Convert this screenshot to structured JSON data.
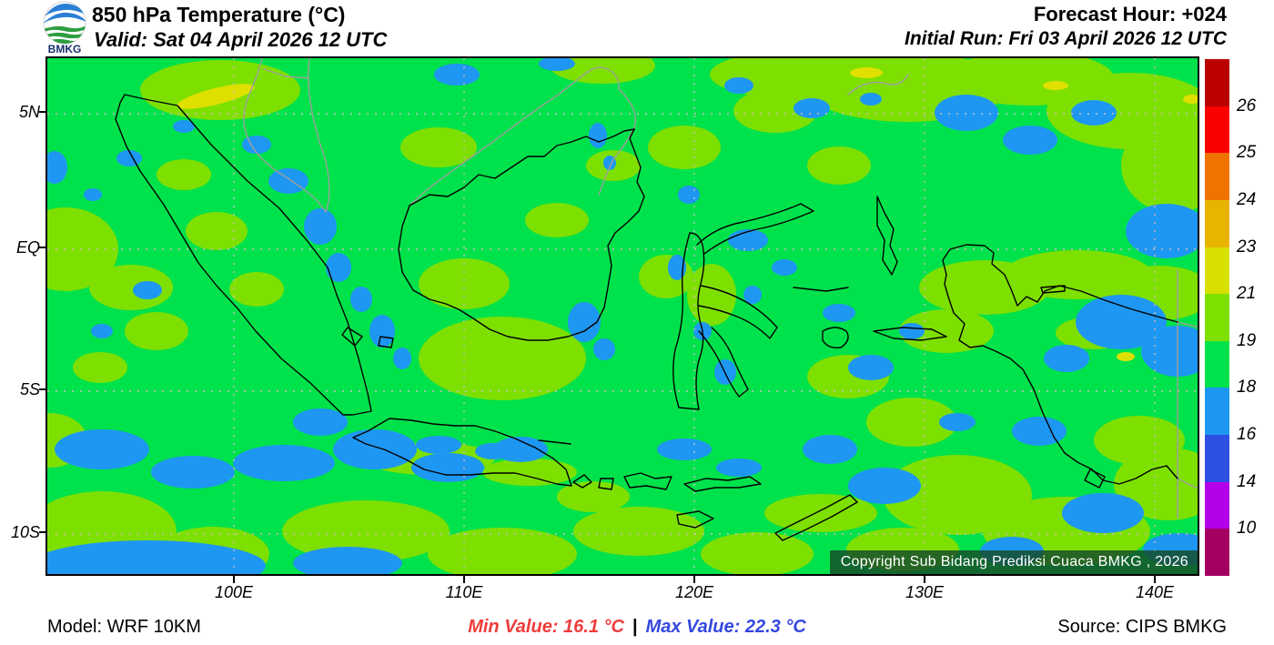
{
  "header": {
    "logo_text": "BMKG",
    "title": "850 hPa Temperature (°C)",
    "valid_label": "Valid: Sat 04 April 2026 12 UTC",
    "forecast_hour": "Forecast Hour: +024",
    "initial_run": "Initial Run: Fri 03 April 2026 12 UTC"
  },
  "map": {
    "lat_ticks": [
      {
        "label": "5N"
      },
      {
        "label": "EQ"
      },
      {
        "label": "5S"
      },
      {
        "label": "10S"
      }
    ],
    "lon_ticks": [
      {
        "label": "100E"
      },
      {
        "label": "110E"
      },
      {
        "label": "120E"
      },
      {
        "label": "130E"
      },
      {
        "label": "140E"
      }
    ],
    "copyright": "Copyright Sub Bidang Prediksi Cuaca BMKG , 2026"
  },
  "legend": {
    "band_colors": [
      "#bb0000",
      "#fb0000",
      "#f07300",
      "#e8b400",
      "#d8e000",
      "#7ee000",
      "#00e24b",
      "#1e97f2",
      "#2d4fe2",
      "#b400e8",
      "#a40062"
    ],
    "boundary_labels": [
      "26",
      "25",
      "24",
      "23",
      "21",
      "19",
      "18",
      "16",
      "14",
      "10"
    ]
  },
  "palette": {
    "green": "#00e24b",
    "lawn": "#7ee000",
    "blue": "#1e97f2",
    "yellow": "#dfe000",
    "coast": "#000000",
    "foreign": "#9e9e9e",
    "grid": "#ccbcbc",
    "min_color": "#f03b3b",
    "max_color": "#3448e0"
  },
  "footer": {
    "model": "Model: WRF 10KM",
    "min_label": "Min Value: 16.1 °C",
    "divider": "|",
    "max_label": "Max Value: 22.3 °C",
    "source": "Source: CIPS BMKG"
  }
}
